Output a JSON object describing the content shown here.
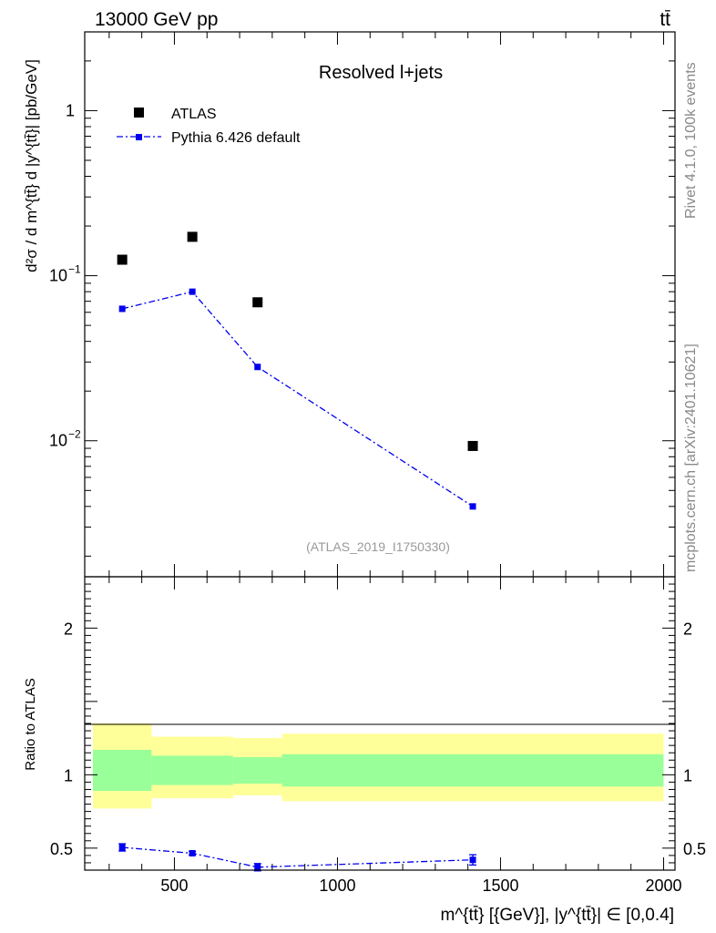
{
  "header": {
    "left": "13000 GeV pp",
    "right": "tt̄"
  },
  "side": {
    "rivet": "Rivet 4.1.0,  100k events",
    "mcplots": "mcplots.cern.ch [arXiv:2401.10621]"
  },
  "chart_data": {
    "type": "scatter",
    "title": "Resolved l+jets",
    "analysis_tag": "(ATLAS_2019_I1750330)",
    "ylabel": "d²σ / d m^{tt̄} d |y^{tt̄}| [pb/GeV]",
    "xlabel": "m^{tt̄} [{GeV}], |y^{tt̄}| ∈ [0,0.4]",
    "ratio_ylabel": "Ratio to ATLAS",
    "xlim": [
      225,
      2035
    ],
    "ylim_log": [
      0.0015,
      3.0
    ],
    "ratio_ylim": [
      0.35,
      2.35
    ],
    "x_ticks": [
      500,
      1000,
      1500,
      2000
    ],
    "ratio_ticks": [
      0.5,
      1,
      2
    ],
    "legend": {
      "data": "ATLAS",
      "mc": "Pythia 6.426 default",
      "position": "top-left"
    },
    "bins": [
      {
        "lo": 250,
        "hi": 430
      },
      {
        "lo": 430,
        "hi": 680
      },
      {
        "lo": 680,
        "hi": 830
      },
      {
        "lo": 830,
        "hi": 2000
      }
    ],
    "data": {
      "name": "ATLAS",
      "x": [
        340,
        555,
        755,
        1415
      ],
      "y": [
        0.125,
        0.172,
        0.069,
        0.0093
      ]
    },
    "mc": {
      "name": "Pythia 6.426 default",
      "x": [
        340,
        555,
        755,
        1415
      ],
      "y": [
        0.063,
        0.08,
        0.028,
        0.004
      ]
    },
    "ratio": {
      "x": [
        340,
        555,
        755,
        1415
      ],
      "y": [
        0.505,
        0.465,
        0.37,
        0.42
      ],
      "err": [
        0.025,
        0.012,
        0.025,
        0.035
      ],
      "band_inner": [
        [
          0.89,
          1.17
        ],
        [
          0.93,
          1.13
        ],
        [
          0.94,
          1.12
        ],
        [
          0.92,
          1.14
        ]
      ],
      "band_outer": [
        [
          0.77,
          1.35
        ],
        [
          0.84,
          1.26
        ],
        [
          0.86,
          1.25
        ],
        [
          0.82,
          1.28
        ]
      ]
    }
  }
}
